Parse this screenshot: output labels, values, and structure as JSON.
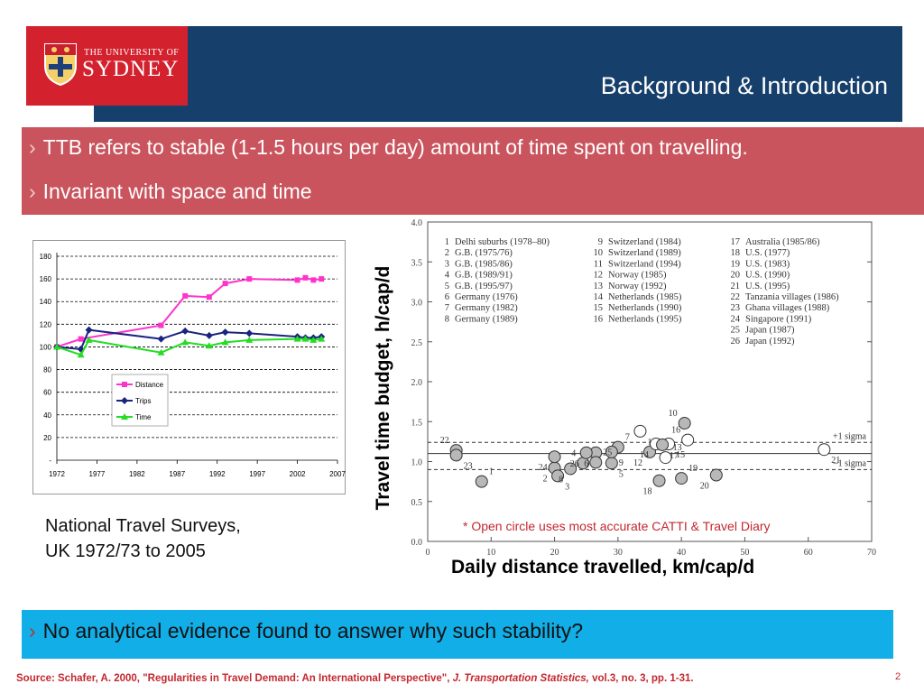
{
  "header": {
    "logo_small": "THE UNIVERSITY OF",
    "logo_big": "SYDNEY",
    "title": "Background & Introduction",
    "bar_color": "#163f6b",
    "logo_color": "#d3212e"
  },
  "bullets": [
    {
      "text": "TTB refers to stable (1-1.5 hours per day) amount of time spent on travelling."
    },
    {
      "text": "Invariant with space and time"
    }
  ],
  "bottom_bullet": {
    "text": "No analytical evidence found to answer why such stability?"
  },
  "chevron": "›",
  "caption": {
    "line1": "National Travel Surveys,",
    "line2": "UK 1972/73 to 2005"
  },
  "ttb_axis_label": "Travel time budget, h/cap/d",
  "distance_axis_label": "Daily distance travelled, km/cap/d",
  "note": "* Open circle uses most accurate CATTI & Travel Diary",
  "footer": {
    "prefix": "Source: Schafer, A. 2000, \"Regularities in Travel Demand: An International Perspective\", ",
    "journal": "J. Transportation Statistics,",
    "suffix": " vol.3, no. 3, pp. 1-31.",
    "page": "2"
  },
  "chart_data": [
    {
      "type": "line",
      "x": [
        1972,
        1975,
        1976,
        1985,
        1988,
        1991,
        1993,
        1996,
        2002,
        2003,
        2004,
        2005
      ],
      "xticks": [
        "1972",
        "1977",
        "1982",
        "1987",
        "1992",
        "1997",
        "2002",
        "2007"
      ],
      "yticks": [
        "-",
        "20",
        "40",
        "60",
        "80",
        "100",
        "120",
        "140",
        "160",
        "180"
      ],
      "ylim": [
        0,
        180
      ],
      "xlim": [
        1972,
        2007
      ],
      "grid": true,
      "legend": "center-left",
      "series": [
        {
          "name": "Distance",
          "color": "#ff33cc",
          "marker": "square",
          "x": [
            1972,
            1975,
            1985,
            1988,
            1991,
            1993,
            1996,
            2002,
            2003,
            2004,
            2005
          ],
          "values": [
            100,
            107,
            119,
            145,
            144,
            156,
            160,
            159,
            161,
            159,
            160
          ]
        },
        {
          "name": "Trips",
          "color": "#1a237e",
          "marker": "diamond",
          "x": [
            1972,
            1975,
            1976,
            1985,
            1988,
            1991,
            1993,
            1996,
            2002,
            2003,
            2004,
            2005
          ],
          "values": [
            100,
            98,
            115,
            107,
            114,
            110,
            113,
            112,
            109,
            108,
            108,
            109
          ]
        },
        {
          "name": "Time",
          "color": "#22dd22",
          "marker": "triangle",
          "x": [
            1972,
            1975,
            1976,
            1985,
            1988,
            1991,
            1993,
            1996,
            2002,
            2003,
            2004,
            2005
          ],
          "values": [
            100,
            93,
            106,
            95,
            104,
            101,
            104,
            106,
            107,
            107,
            106,
            107
          ]
        }
      ]
    },
    {
      "type": "scatter",
      "xticks": [
        "0",
        "10",
        "20",
        "30",
        "40",
        "50",
        "60",
        "70"
      ],
      "yticks": [
        "0.0",
        "0.5",
        "1.0",
        "1.5",
        "2.0",
        "2.5",
        "3.0",
        "3.5",
        "4.0"
      ],
      "xlim": [
        0,
        70
      ],
      "ylim": [
        0,
        4
      ],
      "reference_lines": [
        {
          "y": 1.1,
          "style": "solid",
          "label": ""
        },
        {
          "y": 1.24,
          "style": "dashed",
          "label": "+1 sigma"
        },
        {
          "y": 0.9,
          "style": "dashed",
          "label": "–1 sigma"
        }
      ],
      "legend_entries": [
        {
          "id": "1",
          "label": "Delhi suburbs (1978–80)"
        },
        {
          "id": "2",
          "label": "G.B. (1975/76)"
        },
        {
          "id": "3",
          "label": "G.B. (1985/86)"
        },
        {
          "id": "4",
          "label": "G.B. (1989/91)"
        },
        {
          "id": "5",
          "label": "G.B. (1995/97)"
        },
        {
          "id": "6",
          "label": "Germany (1976)"
        },
        {
          "id": "7",
          "label": "Germany (1982)"
        },
        {
          "id": "8",
          "label": "Germany (1989)"
        },
        {
          "id": "9",
          "label": "Switzerland (1984)"
        },
        {
          "id": "10",
          "label": "Switzerland (1989)"
        },
        {
          "id": "11",
          "label": "Switzerland (1994)"
        },
        {
          "id": "12",
          "label": "Norway (1985)"
        },
        {
          "id": "13",
          "label": "Norway (1992)"
        },
        {
          "id": "14",
          "label": "Netherlands (1985)"
        },
        {
          "id": "15",
          "label": "Netherlands (1990)"
        },
        {
          "id": "16",
          "label": "Netherlands (1995)"
        },
        {
          "id": "17",
          "label": "Australia (1985/86)"
        },
        {
          "id": "18",
          "label": "U.S. (1977)"
        },
        {
          "id": "19",
          "label": "U.S. (1983)"
        },
        {
          "id": "20",
          "label": "U.S. (1990)"
        },
        {
          "id": "21",
          "label": "U.S. (1995)"
        },
        {
          "id": "22",
          "label": "Tanzania villages (1986)"
        },
        {
          "id": "23",
          "label": "Ghana villages (1988)"
        },
        {
          "id": "24",
          "label": "Singapore (1991)"
        },
        {
          "id": "25",
          "label": "Japan (1987)"
        },
        {
          "id": "26",
          "label": "Japan (1992)"
        }
      ],
      "points": [
        {
          "id": "1",
          "x": 8.5,
          "y": 0.75,
          "open": false
        },
        {
          "id": "2",
          "x": 20.0,
          "y": 0.92,
          "open": false
        },
        {
          "id": "3",
          "x": 20.5,
          "y": 0.82,
          "open": false
        },
        {
          "id": "4",
          "x": 24.5,
          "y": 0.98,
          "open": false
        },
        {
          "id": "5",
          "x": 29.0,
          "y": 0.98,
          "open": false
        },
        {
          "id": "6",
          "x": 26.5,
          "y": 1.11,
          "open": false
        },
        {
          "id": "7",
          "x": 30.0,
          "y": 1.18,
          "open": false
        },
        {
          "id": "8",
          "x": 22.5,
          "y": 0.91,
          "open": false
        },
        {
          "id": "9",
          "x": 29.0,
          "y": 1.12,
          "open": false
        },
        {
          "id": "10",
          "x": 40.5,
          "y": 1.48,
          "open": false
        },
        {
          "id": "11",
          "x": 33.5,
          "y": 1.38,
          "open": true
        },
        {
          "id": "12",
          "x": 35.0,
          "y": 1.12,
          "open": false
        },
        {
          "id": "13",
          "x": 37.5,
          "y": 1.05,
          "open": true
        },
        {
          "id": "14",
          "x": 36.0,
          "y": 1.22,
          "open": true
        },
        {
          "id": "15",
          "x": 38.0,
          "y": 1.22,
          "open": true
        },
        {
          "id": "16",
          "x": 41.0,
          "y": 1.27,
          "open": true
        },
        {
          "id": "17",
          "x": 37.0,
          "y": 1.21,
          "open": false
        },
        {
          "id": "18",
          "x": 36.5,
          "y": 0.76,
          "open": false
        },
        {
          "id": "19",
          "x": 40.0,
          "y": 0.79,
          "open": false
        },
        {
          "id": "20",
          "x": 45.5,
          "y": 0.83,
          "open": false
        },
        {
          "id": "21",
          "x": 62.5,
          "y": 1.15,
          "open": true
        },
        {
          "id": "22",
          "x": 4.5,
          "y": 1.14,
          "open": false
        },
        {
          "id": "23",
          "x": 4.5,
          "y": 1.08,
          "open": false
        },
        {
          "id": "24",
          "x": 20.0,
          "y": 1.06,
          "open": false
        },
        {
          "id": "25",
          "x": 26.5,
          "y": 0.99,
          "open": false
        },
        {
          "id": "26",
          "x": 25.0,
          "y": 1.11,
          "open": false
        }
      ]
    }
  ]
}
